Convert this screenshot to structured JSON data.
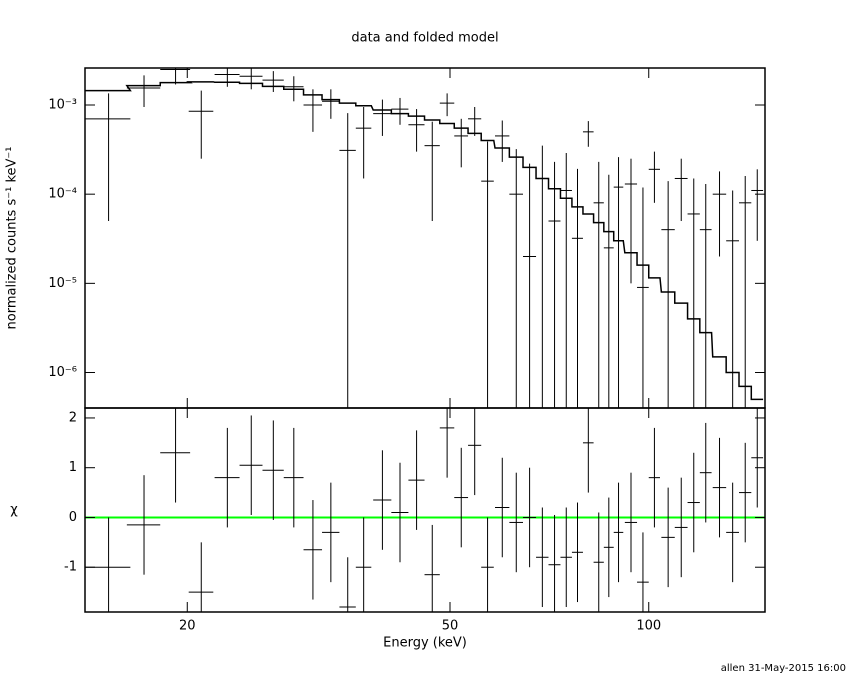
{
  "chart_data": [
    {
      "type": "spectrum",
      "title": "data and folded model",
      "ylabel": "normalized counts s⁻¹ keV⁻¹",
      "xscale": "log",
      "yscale": "log",
      "xlim": [
        14,
        150
      ],
      "ylim": [
        4e-07,
        0.0026
      ],
      "yticks": [
        {
          "value": 0.001,
          "label": "10⁻³"
        },
        {
          "value": 0.0001,
          "label": "10⁻⁴"
        },
        {
          "value": 1e-05,
          "label": "10⁻⁵"
        },
        {
          "value": 1e-06,
          "label": "10⁻⁶"
        }
      ],
      "color": "#000000",
      "x": [
        15.2,
        17.2,
        19.2,
        21,
        23,
        25,
        27,
        29,
        31,
        33,
        35,
        37,
        39.5,
        42,
        44.5,
        47,
        49.5,
        52,
        54.5,
        57,
        60,
        63,
        66,
        69,
        72,
        75,
        78,
        81,
        84,
        87,
        90,
        94,
        98,
        102,
        107,
        112,
        117,
        122,
        128,
        134,
        140,
        146
      ],
      "xerr": [
        1.2,
        1,
        1,
        0.9,
        1,
        1,
        1,
        1,
        1,
        1,
        1,
        1,
        1.25,
        1.25,
        1.25,
        1.25,
        1.25,
        1.25,
        1.25,
        1.25,
        1.5,
        1.5,
        1.5,
        1.5,
        1.5,
        1.5,
        1.5,
        1.5,
        1.5,
        1.5,
        1.5,
        2,
        2,
        2,
        2.5,
        2.5,
        2.5,
        2.5,
        3,
        3,
        3,
        3
      ],
      "values": [
        0.0007,
        0.00155,
        0.0025,
        0.00085,
        0.0022,
        0.0021,
        0.0019,
        0.0016,
        0.001,
        0.0011,
        0.00031,
        0.00055,
        0.0008,
        0.0009,
        0.0006,
        0.00035,
        0.00105,
        0.00045,
        0.0007,
        0.00014,
        0.00045,
        0.0001,
        2e-05,
        0.00015,
        5e-05,
        0.00011,
        3.2e-05,
        0.0005,
        8e-05,
        2.5e-05,
        0.00012,
        0.00013,
        9e-06,
        0.00019,
        4e-05,
        0.00015,
        6e-05,
        4e-05,
        0.0001,
        3e-05,
        8e-05,
        0.00011
      ],
      "errors": [
        0.00065,
        0.0006,
        0.0008,
        0.0006,
        0.0006,
        0.0006,
        0.0005,
        0.0005,
        0.0005,
        0.0004,
        0.0005,
        0.0004,
        0.00035,
        0.0003,
        0.0003,
        0.0003,
        0.0003,
        0.00025,
        0.00025,
        0.00025,
        0.00022,
        0.00022,
        0.0002,
        0.0002,
        0.00018,
        0.00018,
        0.00016,
        0.00016,
        0.00015,
        0.00014,
        0.00014,
        0.00012,
        0.00011,
        0.00011,
        0.0001,
        0.0001,
        9e-05,
        9e-05,
        8e-05,
        8e-05,
        8e-05,
        8e-05
      ],
      "model": [
        0.00145,
        0.00165,
        0.00178,
        0.00182,
        0.0018,
        0.00175,
        0.00162,
        0.0015,
        0.0013,
        0.00115,
        0.00105,
        0.00098,
        0.00088,
        0.0008,
        0.00075,
        0.00068,
        0.00062,
        0.00055,
        0.00048,
        0.0004,
        0.00033,
        0.00026,
        0.0002,
        0.00015,
        0.000115,
        9e-05,
        7.2e-05,
        6e-05,
        4.8e-05,
        3.8e-05,
        3e-05,
        2.2e-05,
        1.6e-05,
        1.15e-05,
        8e-06,
        6e-06,
        4e-06,
        2.8e-06,
        1.5e-06,
        1e-06,
        7e-07,
        5e-07
      ]
    },
    {
      "type": "residuals",
      "xlabel": "Energy (keV)",
      "ylabel": "χ",
      "xscale": "log",
      "xlim": [
        14,
        150
      ],
      "xticks": [
        20,
        50,
        100
      ],
      "ylim": [
        -1.9,
        2.2
      ],
      "yticks": [
        -1,
        0,
        1,
        2
      ],
      "reference": 0,
      "reference_color": "#00ff00",
      "color": "#000000",
      "x": [
        15.2,
        17.2,
        19.2,
        21,
        23,
        25,
        27,
        29,
        31,
        33,
        35,
        37,
        39.5,
        42,
        44.5,
        47,
        49.5,
        52,
        54.5,
        57,
        60,
        63,
        66,
        69,
        72,
        75,
        78,
        81,
        84,
        87,
        90,
        94,
        98,
        102,
        107,
        112,
        117,
        122,
        128,
        134,
        140,
        146
      ],
      "xerr": [
        1.2,
        1,
        1,
        0.9,
        1,
        1,
        1,
        1,
        1,
        1,
        1,
        1,
        1.25,
        1.25,
        1.25,
        1.25,
        1.25,
        1.25,
        1.25,
        1.25,
        1.5,
        1.5,
        1.5,
        1.5,
        1.5,
        1.5,
        1.5,
        1.5,
        1.5,
        1.5,
        1.5,
        2,
        2,
        2,
        2.5,
        2.5,
        2.5,
        2.5,
        3,
        3,
        3,
        3
      ],
      "values": [
        -1.0,
        -0.15,
        1.3,
        -1.5,
        0.8,
        1.05,
        0.95,
        0.8,
        -0.65,
        -0.3,
        -1.8,
        -1.0,
        0.35,
        0.1,
        0.75,
        -1.15,
        1.8,
        0.4,
        1.45,
        -1.0,
        0.2,
        -0.1,
        0.0,
        -0.8,
        -0.95,
        -0.8,
        -0.7,
        1.5,
        -0.9,
        -0.6,
        -0.3,
        -0.1,
        -1.3,
        0.8,
        -0.4,
        -0.2,
        0.3,
        0.9,
        0.6,
        -0.3,
        0.5,
        1.2
      ],
      "errors": [
        1,
        1,
        1,
        1,
        1,
        1,
        1,
        1,
        1,
        1,
        1,
        1,
        1,
        1,
        1,
        1,
        1,
        1,
        1,
        1,
        1,
        1,
        1,
        1,
        1,
        1,
        1,
        1,
        1,
        1,
        1,
        1,
        1,
        1,
        1,
        1,
        1,
        1,
        1,
        1,
        1,
        1
      ]
    }
  ],
  "footer": "allen 31-May-2015 16:00"
}
